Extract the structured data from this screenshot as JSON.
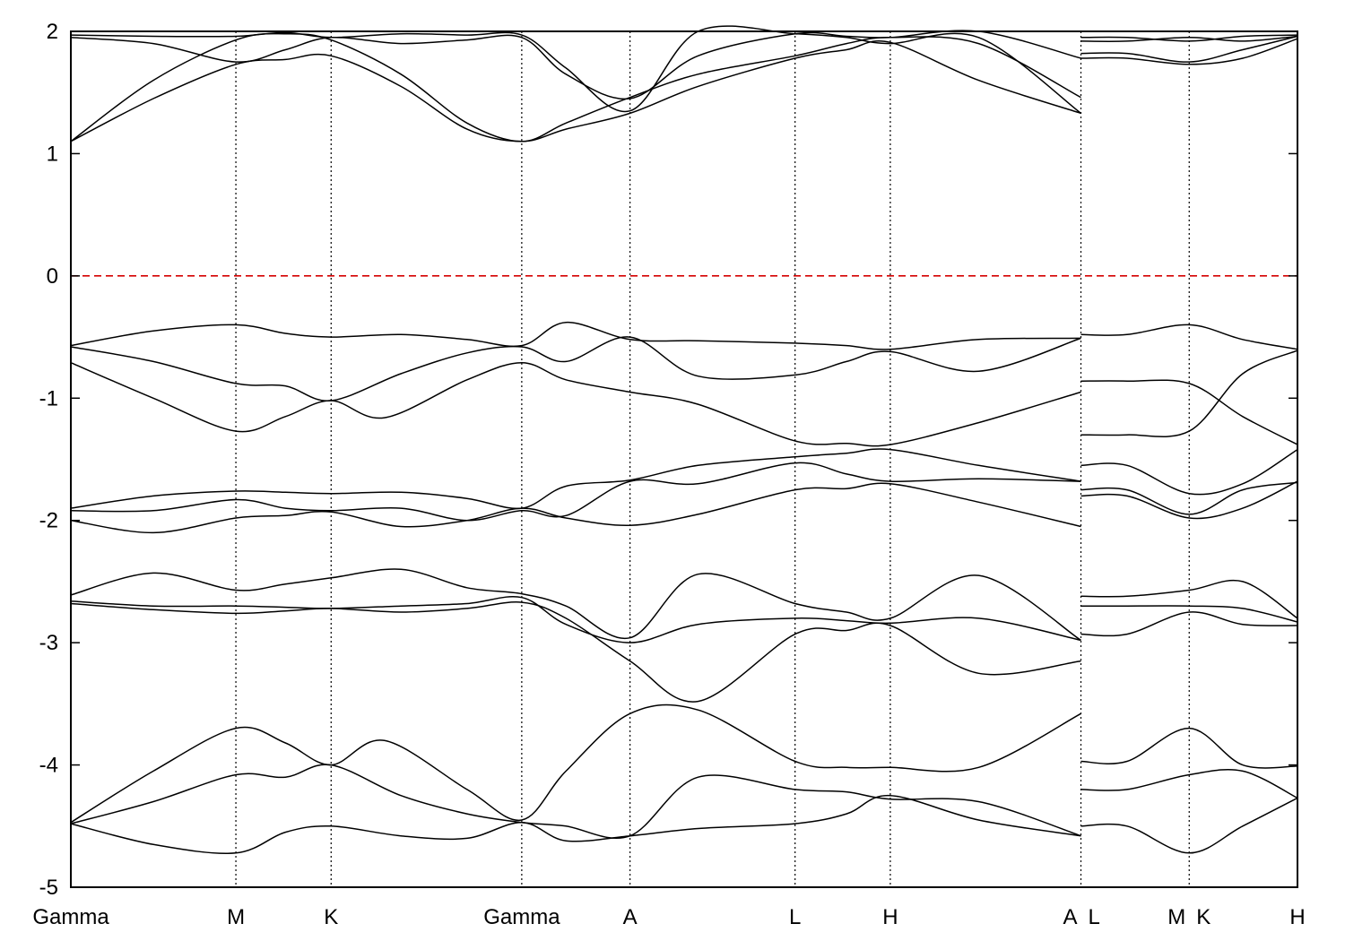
{
  "chart_data": {
    "type": "line",
    "title": "",
    "xlabel": "",
    "ylabel": "",
    "ylim": [
      -5,
      2
    ],
    "yticks": [
      2,
      1,
      0,
      -1,
      -2,
      -3,
      -4,
      -5
    ],
    "grid": false,
    "legend": "none",
    "x_segments": [
      {
        "from": "Gamma",
        "to": "M",
        "start": 0.0,
        "end": 1.0
      },
      {
        "from": "M",
        "to": "K",
        "start": 1.0,
        "end": 1.577
      },
      {
        "from": "K",
        "to": "Gamma",
        "start": 1.577,
        "end": 2.732
      },
      {
        "from": "Gamma",
        "to": "A",
        "start": 2.732,
        "end": 3.388
      },
      {
        "from": "A",
        "to": "L",
        "start": 3.388,
        "end": 4.388
      },
      {
        "from": "L",
        "to": "H",
        "start": 4.388,
        "end": 4.965
      },
      {
        "from": "H",
        "to": "A",
        "start": 4.965,
        "end": 6.12
      },
      {
        "from": "L",
        "to": "M",
        "start": 6.12,
        "end": 6.776
      },
      {
        "from": "K",
        "to": "H",
        "start": 6.776,
        "end": 7.432
      }
    ],
    "high_symmetry_points": [
      {
        "label": "Gamma",
        "x": 0.0
      },
      {
        "label": "M",
        "x": 1.0
      },
      {
        "label": "K",
        "x": 1.577
      },
      {
        "label": "Gamma",
        "x": 2.732
      },
      {
        "label": "A",
        "x": 3.388
      },
      {
        "label": "L",
        "x": 4.388
      },
      {
        "label": "H",
        "x": 4.965
      },
      {
        "label": "A",
        "x": 6.12
      },
      {
        "label": "L",
        "x": 6.12
      },
      {
        "label": "M",
        "x": 6.776
      },
      {
        "label": "K",
        "x": 6.776
      },
      {
        "label": "H",
        "x": 7.432
      }
    ],
    "fermi_level": 0,
    "fermi_color": "#d40000",
    "line_color": "#000000",
    "series": [
      {
        "x": [
          0,
          0.5,
          1.0,
          1.3,
          1.577,
          2.0,
          2.4,
          2.732,
          3.0,
          3.388,
          3.8,
          4.388,
          4.7,
          4.965,
          5.5,
          6.12,
          6.4,
          6.776,
          7.1,
          7.432
        ],
        "y": [
          -0.57,
          -0.45,
          -0.4,
          -0.47,
          -0.5,
          -0.48,
          -0.52,
          -0.57,
          -0.38,
          -0.52,
          -0.53,
          -0.55,
          -0.57,
          -0.6,
          -0.52,
          -0.51,
          -0.48,
          -0.4,
          -0.52,
          -0.6
        ]
      },
      {
        "x": [
          0,
          0.5,
          1.0,
          1.3,
          1.577,
          2.0,
          2.4,
          2.732,
          3.0,
          3.388,
          3.8,
          4.388,
          4.7,
          4.965,
          5.5,
          6.12,
          6.4,
          6.776,
          7.1,
          7.432
        ],
        "y": [
          -0.58,
          -0.7,
          -0.88,
          -0.9,
          -1.02,
          -0.8,
          -0.63,
          -0.58,
          -0.7,
          -0.5,
          -0.82,
          -0.81,
          -0.7,
          -0.62,
          -0.78,
          -0.51,
          -0.86,
          -0.88,
          -1.15,
          -1.38
        ]
      },
      {
        "x": [
          0,
          0.5,
          1.0,
          1.3,
          1.577,
          1.9,
          2.4,
          2.732,
          3.0,
          3.388,
          3.8,
          4.388,
          4.7,
          4.965,
          5.5,
          6.12,
          6.4,
          6.776,
          7.1,
          7.432
        ],
        "y": [
          -0.71,
          -1.0,
          -1.27,
          -1.15,
          -1.02,
          -1.16,
          -0.85,
          -0.71,
          -0.85,
          -0.95,
          -1.05,
          -1.35,
          -1.37,
          -1.38,
          -1.2,
          -0.95,
          -1.3,
          -1.27,
          -0.8,
          -0.61
        ]
      },
      {
        "x": [
          0,
          0.5,
          1.0,
          1.3,
          1.577,
          2.0,
          2.4,
          2.732,
          3.0,
          3.388,
          3.8,
          4.388,
          4.7,
          4.965,
          5.5,
          6.12,
          6.4,
          6.776,
          7.1,
          7.432
        ],
        "y": [
          -1.9,
          -1.8,
          -1.76,
          -1.77,
          -1.78,
          -1.77,
          -1.82,
          -1.9,
          -1.72,
          -1.67,
          -1.55,
          -1.48,
          -1.45,
          -1.42,
          -1.55,
          -1.68,
          -1.55,
          -1.78,
          -1.7,
          -1.42
        ]
      },
      {
        "x": [
          0,
          0.5,
          1.0,
          1.3,
          1.577,
          2.0,
          2.4,
          2.732,
          3.0,
          3.388,
          3.8,
          4.388,
          4.7,
          4.965,
          5.5,
          6.12,
          6.4,
          6.776,
          7.1,
          7.432
        ],
        "y": [
          -1.92,
          -1.92,
          -1.83,
          -1.9,
          -1.92,
          -1.9,
          -2.0,
          -1.92,
          -1.96,
          -1.68,
          -1.7,
          -1.53,
          -1.62,
          -1.68,
          -1.66,
          -1.68,
          -1.75,
          -1.95,
          -1.75,
          -1.69
        ]
      },
      {
        "x": [
          0,
          0.5,
          1.0,
          1.3,
          1.577,
          2.0,
          2.4,
          2.732,
          3.0,
          3.388,
          3.8,
          4.388,
          4.7,
          4.965,
          5.5,
          6.12,
          6.4,
          6.776,
          7.1,
          7.432
        ],
        "y": [
          -2.0,
          -2.1,
          -1.98,
          -1.96,
          -1.93,
          -2.05,
          -2.0,
          -1.9,
          -1.98,
          -2.04,
          -1.95,
          -1.75,
          -1.74,
          -1.7,
          -1.85,
          -2.05,
          -1.8,
          -1.98,
          -1.9,
          -1.68
        ]
      },
      {
        "x": [
          0,
          0.5,
          1.0,
          1.3,
          1.577,
          2.0,
          2.4,
          2.732,
          3.0,
          3.388,
          3.8,
          4.388,
          4.7,
          4.965,
          5.5,
          6.12,
          6.4,
          6.776,
          7.1,
          7.432
        ],
        "y": [
          -2.61,
          -2.43,
          -2.57,
          -2.52,
          -2.47,
          -2.4,
          -2.55,
          -2.6,
          -2.7,
          -2.96,
          -2.44,
          -2.68,
          -2.75,
          -2.8,
          -2.45,
          -2.98,
          -2.62,
          -2.57,
          -2.5,
          -2.8
        ]
      },
      {
        "x": [
          0,
          0.5,
          1.0,
          1.3,
          1.577,
          2.0,
          2.4,
          2.732,
          3.0,
          3.388,
          3.8,
          4.388,
          4.7,
          4.965,
          5.5,
          6.12,
          6.4,
          6.776,
          7.1,
          7.432
        ],
        "y": [
          -2.66,
          -2.7,
          -2.7,
          -2.71,
          -2.72,
          -2.7,
          -2.68,
          -2.63,
          -2.85,
          -3.0,
          -2.85,
          -2.8,
          -2.82,
          -2.84,
          -2.8,
          -2.98,
          -2.7,
          -2.7,
          -2.72,
          -2.83
        ]
      },
      {
        "x": [
          0,
          0.5,
          1.0,
          1.3,
          1.577,
          2.0,
          2.4,
          2.732,
          3.0,
          3.388,
          3.8,
          4.388,
          4.7,
          4.965,
          5.5,
          6.12,
          6.4,
          6.776,
          7.1,
          7.432
        ],
        "y": [
          -2.68,
          -2.73,
          -2.76,
          -2.74,
          -2.72,
          -2.75,
          -2.72,
          -2.67,
          -2.8,
          -3.15,
          -3.48,
          -2.93,
          -2.9,
          -2.86,
          -3.25,
          -3.15,
          -2.93,
          -2.75,
          -2.85,
          -2.86
        ]
      },
      {
        "x": [
          0,
          0.5,
          1.0,
          1.3,
          1.577,
          1.9,
          2.4,
          2.732,
          3.0,
          3.388,
          3.8,
          4.388,
          4.7,
          4.965,
          5.5,
          6.12,
          6.4,
          6.776,
          7.1,
          7.432
        ],
        "y": [
          -4.47,
          -4.05,
          -3.7,
          -3.82,
          -4.0,
          -3.8,
          -4.2,
          -4.45,
          -4.05,
          -3.58,
          -3.55,
          -3.97,
          -4.02,
          -4.02,
          -4.02,
          -3.58,
          -3.97,
          -3.7,
          -4.0,
          -4.01
        ]
      },
      {
        "x": [
          0,
          0.5,
          1.0,
          1.3,
          1.577,
          2.0,
          2.4,
          2.732,
          3.0,
          3.388,
          3.8,
          4.388,
          4.7,
          4.965,
          5.5,
          6.12,
          6.4,
          6.776,
          7.1,
          7.432
        ],
        "y": [
          -4.48,
          -4.3,
          -4.08,
          -4.1,
          -4.0,
          -4.25,
          -4.4,
          -4.47,
          -4.5,
          -4.58,
          -4.1,
          -4.2,
          -4.22,
          -4.28,
          -4.3,
          -4.58,
          -4.2,
          -4.08,
          -4.05,
          -4.27
        ]
      },
      {
        "x": [
          0,
          0.5,
          1.0,
          1.3,
          1.577,
          2.0,
          2.4,
          2.732,
          3.0,
          3.388,
          3.8,
          4.388,
          4.7,
          4.965,
          5.5,
          6.12,
          6.4,
          6.776,
          7.1,
          7.432
        ],
        "y": [
          -4.48,
          -4.65,
          -4.72,
          -4.55,
          -4.5,
          -4.58,
          -4.6,
          -4.47,
          -4.62,
          -4.58,
          -4.52,
          -4.48,
          -4.4,
          -4.25,
          -4.45,
          -4.58,
          -4.5,
          -4.72,
          -4.5,
          -4.27
        ]
      },
      {
        "x": [
          0,
          0.5,
          1.0,
          1.3,
          1.577,
          2.0,
          2.4,
          2.732,
          3.0,
          3.388,
          3.8,
          4.388,
          4.7,
          4.965,
          5.5,
          6.12,
          6.4,
          6.776,
          7.1,
          7.432
        ],
        "y": [
          1.1,
          1.45,
          1.73,
          1.77,
          1.8,
          1.55,
          1.2,
          1.1,
          1.2,
          1.33,
          1.55,
          1.78,
          1.85,
          1.91,
          1.6,
          1.33,
          1.78,
          1.73,
          1.78,
          1.94
        ]
      },
      {
        "x": [
          0,
          0.5,
          1.0,
          1.3,
          1.577,
          2.0,
          2.4,
          2.732,
          3.0,
          3.388,
          3.8,
          4.388,
          4.7,
          4.965,
          5.5,
          6.12,
          6.4,
          6.776,
          7.1,
          7.432
        ],
        "y": [
          1.1,
          1.6,
          1.93,
          1.98,
          1.93,
          1.65,
          1.25,
          1.1,
          1.25,
          1.46,
          1.65,
          1.8,
          1.9,
          1.95,
          1.9,
          1.46,
          1.82,
          1.75,
          1.85,
          1.96
        ]
      },
      {
        "x": [
          0,
          0.5,
          1.0,
          1.3,
          1.577,
          2.0,
          2.4,
          2.732,
          3.0,
          3.388,
          3.8,
          4.388,
          4.7,
          4.965,
          5.5,
          6.12,
          6.4,
          6.776,
          7.1,
          7.432
        ],
        "y": [
          1.95,
          1.9,
          1.75,
          1.85,
          1.95,
          1.9,
          1.93,
          1.95,
          1.65,
          1.45,
          1.8,
          1.98,
          1.96,
          1.95,
          2.0,
          1.78,
          1.92,
          1.95,
          1.92,
          1.96
        ]
      },
      {
        "x": [
          0,
          0.5,
          1.0,
          1.3,
          1.577,
          2.0,
          2.4,
          2.732,
          3.0,
          3.388,
          3.8,
          4.388,
          4.7,
          4.965,
          5.5,
          6.12,
          6.4,
          6.776,
          7.1,
          7.432
        ],
        "y": [
          1.97,
          1.96,
          1.96,
          1.99,
          1.95,
          1.98,
          1.97,
          1.97,
          1.7,
          1.35,
          2.0,
          1.98,
          1.95,
          1.9,
          1.95,
          1.33,
          1.95,
          1.92,
          1.96,
          1.97
        ]
      }
    ]
  }
}
